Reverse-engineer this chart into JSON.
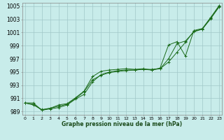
{
  "title": "Graphe pression niveau de la mer (hPa)",
  "background_color": "#c8ecea",
  "grid_color": "#a0c8c8",
  "line_color": "#1a6b1a",
  "x_labels": [
    "0",
    "1",
    "2",
    "3",
    "4",
    "5",
    "6",
    "7",
    "8",
    "9",
    "10",
    "11",
    "12",
    "13",
    "14",
    "15",
    "16",
    "17",
    "18",
    "19",
    "20",
    "21",
    "22",
    "23"
  ],
  "ylim": [
    988.5,
    1005.5
  ],
  "yticks": [
    989,
    991,
    993,
    995,
    997,
    999,
    1001,
    1003,
    1005
  ],
  "line_smooth": [
    990.3,
    990.0,
    989.3,
    989.5,
    989.8,
    990.1,
    991.0,
    992.0,
    993.8,
    994.5,
    994.9,
    995.1,
    995.2,
    995.3,
    995.4,
    995.4,
    995.5,
    996.5,
    998.0,
    999.5,
    1001.2,
    1001.5,
    1003.1,
    1004.9
  ],
  "line_mid": [
    990.3,
    990.1,
    989.2,
    989.4,
    989.6,
    990.0,
    990.9,
    991.6,
    993.5,
    994.6,
    995.0,
    995.2,
    995.3,
    995.3,
    995.4,
    995.3,
    995.5,
    997.0,
    999.3,
    999.7,
    1001.1,
    1001.5,
    1003.2,
    1005.0
  ],
  "line_jagged": [
    990.3,
    990.3,
    989.2,
    989.5,
    990.0,
    990.2,
    991.1,
    992.1,
    994.3,
    995.1,
    995.3,
    995.4,
    995.5,
    995.4,
    995.5,
    995.3,
    995.6,
    999.1,
    999.6,
    997.4,
    1001.3,
    1001.6,
    1003.3,
    1005.1
  ]
}
